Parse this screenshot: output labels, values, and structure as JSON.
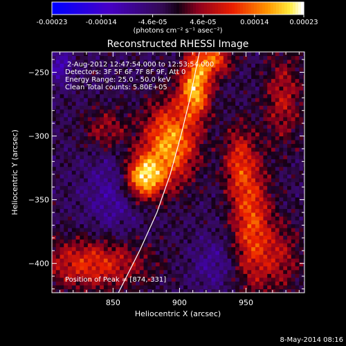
{
  "chart_data": {
    "type": "heatmap",
    "title": "Reconstructed RHESSI Image",
    "xlabel": "Heliocentric X (arcsec)",
    "ylabel": "Heliocentric Y (arcsec)",
    "xlim": [
      804,
      994
    ],
    "ylim": [
      -423,
      -234
    ],
    "x_ticks": [
      850,
      900,
      950
    ],
    "y_ticks": [
      -250,
      -300,
      -350,
      -400
    ],
    "colorbar": {
      "range": [
        -0.00023,
        0.00023
      ],
      "tick_values": [
        -0.00023,
        -0.00014,
        -4.6e-05,
        4.6e-05,
        0.00014,
        0.00023
      ],
      "tick_labels": [
        "-0.00023",
        "-0.00014",
        "-4.6e-05",
        "4.6e-05",
        "0.00014",
        "0.00023"
      ],
      "unit_label": "(photons cm⁻² s⁻¹ asec⁻²)"
    },
    "annotations": [
      "2-Aug-2012 12:47:54.000 to 12:53:54.000",
      "Detectors: 3F 5F 6F 7F 8F 9F, Att 0",
      "Energy Range: 25.0 - 50.0 keV",
      "Clean     Total counts: 5.80E+05"
    ],
    "peak": {
      "label": "Position of Peak = [874,-331]",
      "x": 874,
      "y": -331
    },
    "limb_curve": [
      [
        854,
        -423
      ],
      [
        870,
        -390
      ],
      [
        883,
        -360
      ],
      [
        893,
        -330
      ],
      [
        901,
        -300
      ],
      [
        908,
        -270
      ],
      [
        915,
        -234
      ]
    ],
    "sources": [
      {
        "x": 873,
        "y": -332,
        "value": 0.00023,
        "sx": 10,
        "sy": 12
      },
      {
        "x": 893,
        "y": -305,
        "value": 0.0002,
        "sx": 14,
        "sy": 22
      },
      {
        "x": 912,
        "y": -262,
        "value": 0.00021,
        "sx": 8,
        "sy": 16
      },
      {
        "x": 925,
        "y": -240,
        "value": 0.00015,
        "sx": 10,
        "sy": 9
      },
      {
        "x": 954,
        "y": -367,
        "value": 0.00014,
        "sx": 10,
        "sy": 35
      },
      {
        "x": 944,
        "y": -320,
        "value": 0.0001,
        "sx": 8,
        "sy": 20
      },
      {
        "x": 835,
        "y": -400,
        "value": 0.00013,
        "sx": 28,
        "sy": 14
      },
      {
        "x": 845,
        "y": -295,
        "value": 8e-05,
        "sx": 12,
        "sy": 12
      },
      {
        "x": 978,
        "y": -270,
        "value": 9e-05,
        "sx": 10,
        "sy": 25
      },
      {
        "x": 975,
        "y": -395,
        "value": 8e-05,
        "sx": 12,
        "sy": 20
      },
      {
        "x": 850,
        "y": -345,
        "value": -6e-05,
        "sx": 15,
        "sy": 25
      },
      {
        "x": 925,
        "y": -400,
        "value": -5e-05,
        "sx": 12,
        "sy": 14
      },
      {
        "x": 810,
        "y": -245,
        "value": -8e-05,
        "sx": 6,
        "sy": 10
      }
    ]
  },
  "footer": {
    "date": "8-May-2014 08:16"
  },
  "colors": {
    "background": "#000000",
    "text": "#ffffff",
    "limb_line": "#ffffff"
  }
}
